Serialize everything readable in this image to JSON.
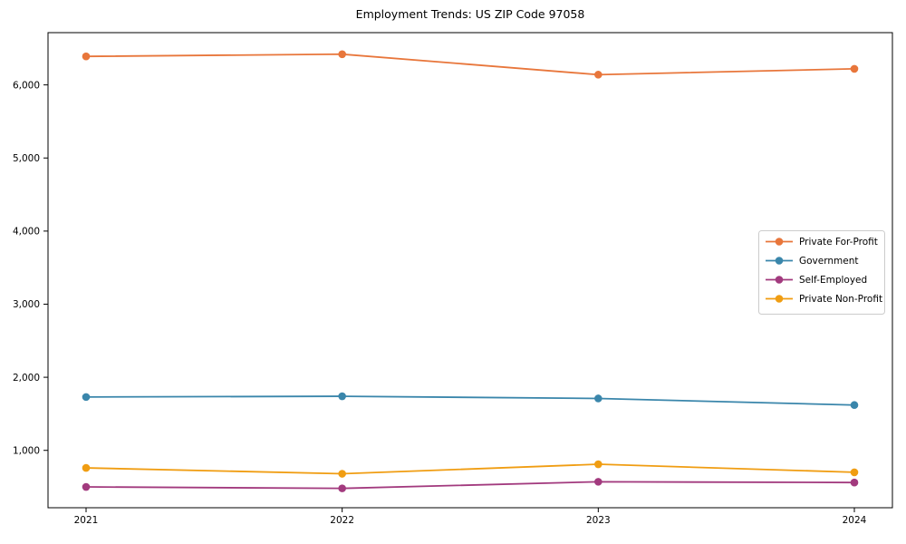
{
  "figure": {
    "background": "#ffffff",
    "axis_color": "#000000"
  },
  "chart_data": {
    "type": "line",
    "title": "Employment Trends: US ZIP Code 97058",
    "xlabel": "",
    "ylabel": "",
    "x": [
      2021,
      2022,
      2023,
      2024
    ],
    "x_tick_labels": [
      "2021",
      "2022",
      "2023",
      "2024"
    ],
    "y_ticks": [
      1000,
      2000,
      3000,
      4000,
      5000,
      6000
    ],
    "y_tick_labels": [
      "1,000",
      "2,000",
      "3,000",
      "4,000",
      "5,000",
      "6,000"
    ],
    "ylim": [
      215,
      6715
    ],
    "grid": false,
    "marker": "circle",
    "legend_position": "center-right",
    "legend_border_color": "#cccccc",
    "legend_background": "#ffffff",
    "series": [
      {
        "name": "Private For-Profit",
        "color": "#e8763b",
        "values": [
          6390,
          6420,
          6140,
          6220
        ]
      },
      {
        "name": "Government",
        "color": "#3a86ab",
        "values": [
          1730,
          1740,
          1710,
          1620
        ]
      },
      {
        "name": "Self-Employed",
        "color": "#a23a7e",
        "values": [
          500,
          480,
          570,
          560
        ]
      },
      {
        "name": "Private Non-Profit",
        "color": "#f09d12",
        "values": [
          760,
          680,
          810,
          700
        ]
      }
    ]
  }
}
